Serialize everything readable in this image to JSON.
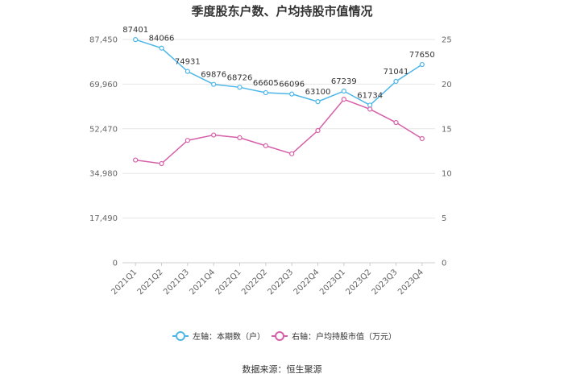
{
  "chart_data": {
    "type": "line",
    "title": "季度股东户数、户均持股市值情况",
    "categories": [
      "2021Q1",
      "2021Q2",
      "2021Q3",
      "2021Q4",
      "2022Q1",
      "2022Q2",
      "2022Q3",
      "2022Q4",
      "2023Q1",
      "2023Q2",
      "2023Q3",
      "2023Q4"
    ],
    "left_axis": {
      "ylim": [
        0,
        87450
      ],
      "ticks": [
        "0",
        "17,490",
        "34,980",
        "52,470",
        "69,960",
        "87,450"
      ]
    },
    "right_axis": {
      "ylim": [
        0,
        25
      ],
      "ticks": [
        "0",
        "5",
        "10",
        "15",
        "20",
        "25"
      ]
    },
    "series": [
      {
        "name": "左轴：本期数（户）",
        "axis": "left",
        "color": "#4db6e8",
        "values": [
          87401,
          84066,
          74931,
          69876,
          68726,
          66605,
          66096,
          63100,
          67239,
          61734,
          71041,
          77650
        ],
        "labels": [
          "87401",
          "84066",
          "74931",
          "69876",
          "68726",
          "66605",
          "66096",
          "63100",
          "67239",
          "61734",
          "71041",
          "77650"
        ]
      },
      {
        "name": "右轴：户均持股市值（万元）",
        "axis": "right",
        "color": "#d65fa8",
        "values": [
          11.5,
          11.1,
          13.7,
          14.3,
          14.0,
          13.1,
          12.2,
          14.8,
          18.3,
          17.2,
          15.7,
          13.9
        ]
      }
    ],
    "grid": true,
    "legend_position": "bottom"
  },
  "source_text": "数据来源：恒生聚源"
}
